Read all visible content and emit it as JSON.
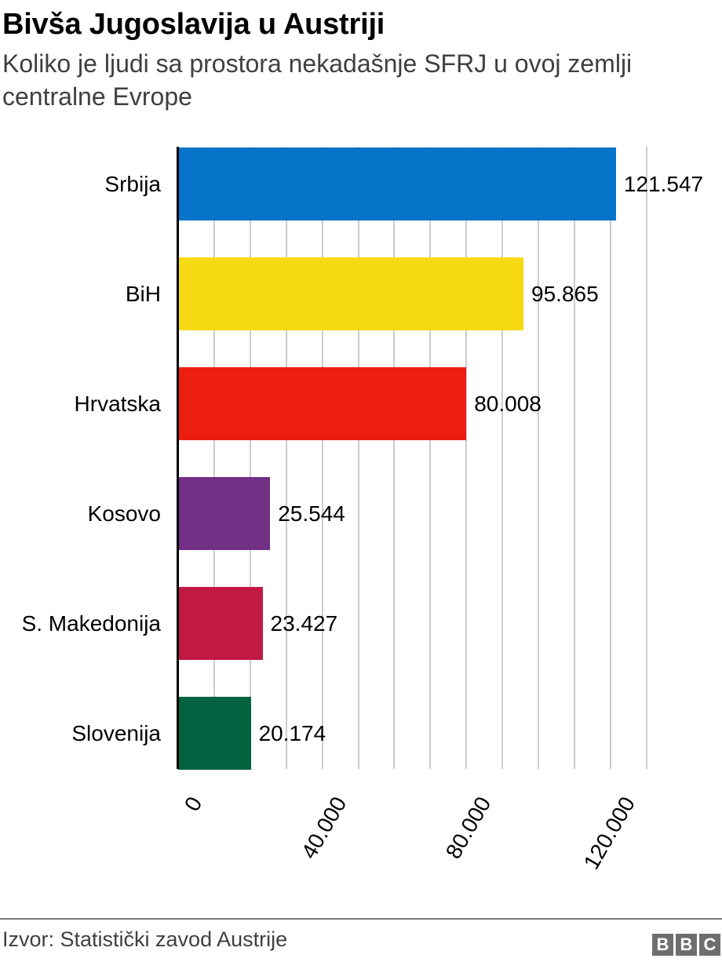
{
  "header": {
    "title": "Bivša Jugoslavija u Austriji",
    "subtitle": "Koliko je ljudi sa prostora nekadašnje SFRJ u ovoj zemlji centralne Evrope"
  },
  "footer": {
    "source": "Izvor: Statistički zavod Austrije",
    "logo_letters": [
      "B",
      "B",
      "C"
    ]
  },
  "chart_data": {
    "type": "bar",
    "orientation": "horizontal",
    "title": "Bivša Jugoslavija u Austriji",
    "subtitle": "Koliko je ljudi sa prostora nekadašnje SFRJ u ovoj zemlji centralne Evrope",
    "categories": [
      "Srbija",
      "BiH",
      "Hrvatska",
      "Kosovo",
      "S. Makedonija",
      "Slovenija"
    ],
    "values": [
      121547,
      95865,
      80008,
      25544,
      23427,
      20174
    ],
    "value_labels": [
      "121.547",
      "95.865",
      "80.008",
      "25.544",
      "23.427",
      "20.174"
    ],
    "colors": [
      "#0675c9",
      "#f5da14",
      "#ec1e12",
      "#712f86",
      "#c11941",
      "#036341"
    ],
    "xlabel": "",
    "ylabel": "",
    "xlim": [
      0,
      130000
    ],
    "x_ticks": [
      0,
      40000,
      80000,
      120000
    ],
    "x_tick_labels": [
      "0",
      "40.000",
      "80.000",
      "120.000"
    ],
    "grid": {
      "vertical": true,
      "interval": 10000,
      "color": "#cccccc"
    },
    "legend": null,
    "source": "Izvor: Statistički zavod Austrije"
  }
}
